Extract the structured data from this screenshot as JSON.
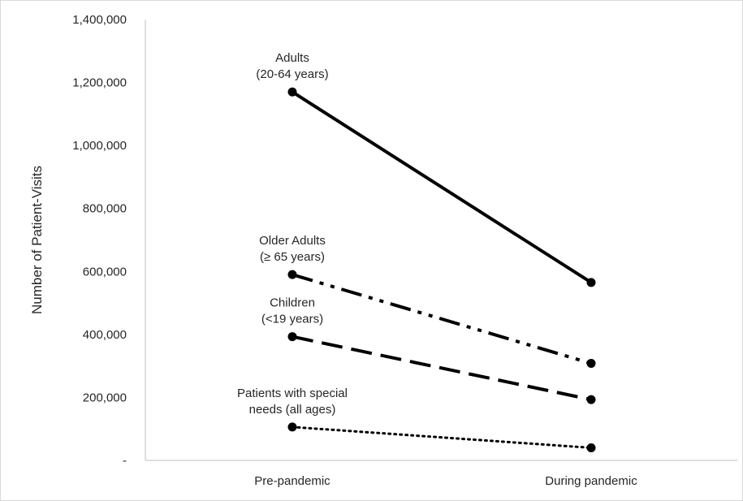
{
  "chart_data": {
    "type": "line",
    "categories": [
      "Pre-pandemic",
      "During pandemic"
    ],
    "ylabel": "Number of Patient-Visits",
    "ylim": [
      0,
      1400000
    ],
    "yticks": [
      0,
      200000,
      400000,
      600000,
      800000,
      1000000,
      1200000,
      1400000
    ],
    "ytick_labels": [
      "-",
      "200,000",
      "400,000",
      "600,000",
      "800,000",
      "1,000,000",
      "1,200,000",
      "1,400,000"
    ],
    "grid": false,
    "legend": "none",
    "series": [
      {
        "label_lines": [
          "Adults",
          "(20-64 years)"
        ],
        "values": [
          1170000,
          565000
        ],
        "line_style": "solid",
        "color": "#000000"
      },
      {
        "label_lines": [
          "Older Adults",
          "(≥ 65 years)"
        ],
        "values": [
          590000,
          308000
        ],
        "line_style": "dash-dot-dot",
        "color": "#000000"
      },
      {
        "label_lines": [
          "Children",
          "(<19 years)"
        ],
        "values": [
          393000,
          193000
        ],
        "line_style": "long-dash",
        "color": "#000000"
      },
      {
        "label_lines": [
          "Patients with special",
          "needs (all ages)"
        ],
        "values": [
          106000,
          40000
        ],
        "line_style": "dotted",
        "color": "#000000"
      }
    ]
  }
}
